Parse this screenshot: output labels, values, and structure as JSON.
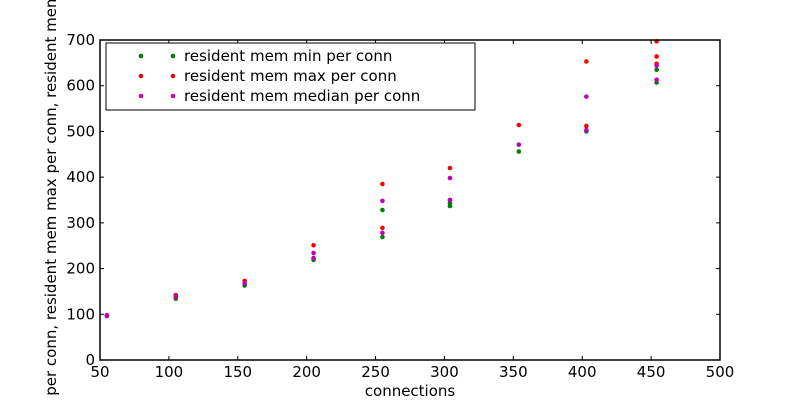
{
  "chart_data": {
    "type": "scatter",
    "title": "",
    "xlabel": "connections",
    "ylabel": "resident mem min per conn, resident mem max per conn, resident mem median per conn",
    "xlim": [
      50,
      500
    ],
    "ylim": [
      0,
      700
    ],
    "xticks": [
      "50",
      "100",
      "150",
      "200",
      "250",
      "300",
      "350",
      "400",
      "450",
      "500"
    ],
    "yticks": [
      "0",
      "100",
      "200",
      "300",
      "400",
      "500",
      "600",
      "700"
    ],
    "grid": false,
    "legend_position": "top-left",
    "series": [
      {
        "name": "resident mem min per conn",
        "color": "#008000",
        "x": [
          55,
          105,
          155,
          205,
          255,
          255,
          304,
          304,
          354,
          403,
          454,
          454
        ],
        "y": [
          96,
          134,
          163,
          219,
          328,
          269,
          343,
          337,
          456,
          500,
          635,
          607
        ]
      },
      {
        "name": "resident mem max per conn",
        "color": "#ff0000",
        "x": [
          55,
          105,
          155,
          205,
          255,
          255,
          304,
          304,
          354,
          403,
          403,
          454,
          454,
          454
        ],
        "y": [
          98,
          142,
          173,
          251,
          385,
          289,
          420,
          350,
          514,
          653,
          512,
          697,
          664,
          648
        ]
      },
      {
        "name": "resident mem median per conn",
        "color": "#bf00bf",
        "x": [
          55,
          105,
          155,
          205,
          205,
          255,
          255,
          304,
          304,
          354,
          403,
          403,
          454,
          454
        ],
        "y": [
          97,
          138,
          168,
          234,
          223,
          348,
          278,
          398,
          350,
          471,
          576,
          503,
          644,
          613
        ]
      }
    ]
  }
}
